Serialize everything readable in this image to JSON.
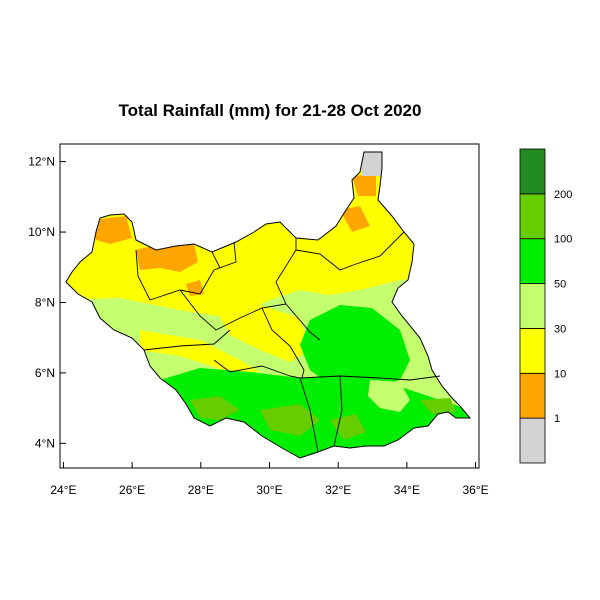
{
  "title": "Total Rainfall (mm) for 21-28 Oct 2020",
  "y_axis": {
    "ticks": [
      {
        "value": 4,
        "label": "4°N"
      },
      {
        "value": 6,
        "label": "6°N"
      },
      {
        "value": 8,
        "label": "8°N"
      },
      {
        "value": 10,
        "label": "10°N"
      },
      {
        "value": 12,
        "label": "12°N"
      }
    ],
    "range": [
      3.3,
      12.5
    ]
  },
  "x_axis": {
    "ticks": [
      {
        "value": 24,
        "label": "24°E"
      },
      {
        "value": 26,
        "label": "26°E"
      },
      {
        "value": 28,
        "label": "28°E"
      },
      {
        "value": 30,
        "label": "30°E"
      },
      {
        "value": 32,
        "label": "32°E"
      },
      {
        "value": 34,
        "label": "34°E"
      },
      {
        "value": 36,
        "label": "36°E"
      }
    ],
    "range": [
      23.9,
      36.1
    ]
  },
  "legend": {
    "classes": [
      {
        "color": "#d3d3d3"
      },
      {
        "color": "#ffa500"
      },
      {
        "color": "#ffff00"
      },
      {
        "color": "#c4ff70"
      },
      {
        "color": "#00ee00"
      },
      {
        "color": "#66cd00"
      },
      {
        "color": "#228b22"
      }
    ],
    "boundaries": [
      "1",
      "10",
      "30",
      "50",
      "100",
      "200"
    ]
  },
  "colors": {
    "outline": "#000000",
    "country_fill_base": "#ffff00"
  }
}
